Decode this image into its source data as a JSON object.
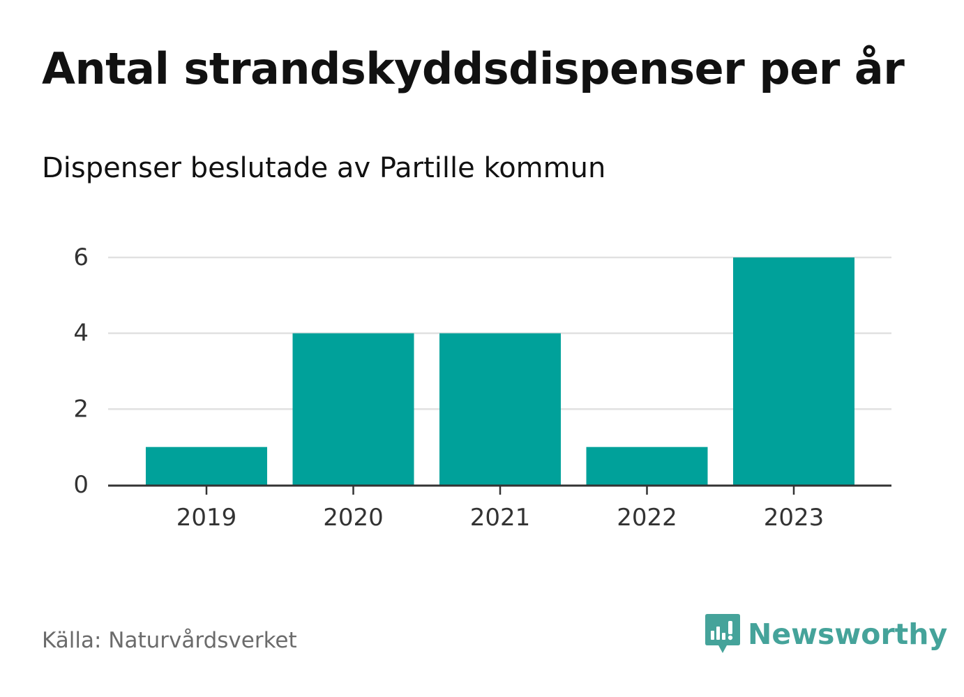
{
  "title": "Antal strandskyddsdispenser per år",
  "subtitle": "Dispenser beslutade av Partille kommun",
  "source": "Källa: Naturvårdsverket",
  "brand": {
    "name": "Newsworthy",
    "icon": "newsworthy-logo-icon",
    "color": "#45a39a"
  },
  "colors": {
    "bar": "#00a19a",
    "grid": "#e1e1e1",
    "axis": "#333333"
  },
  "chart_data": {
    "type": "bar",
    "title": "Antal strandskyddsdispenser per år",
    "subtitle": "Dispenser beslutade av Partille kommun",
    "categories": [
      "2019",
      "2020",
      "2021",
      "2022",
      "2023"
    ],
    "values": [
      1,
      4,
      4,
      1,
      6
    ],
    "xlabel": "",
    "ylabel": "",
    "ylim": [
      0,
      6
    ],
    "yticks": [
      "0",
      "2",
      "4",
      "6"
    ],
    "grid": true,
    "legend": "none"
  }
}
